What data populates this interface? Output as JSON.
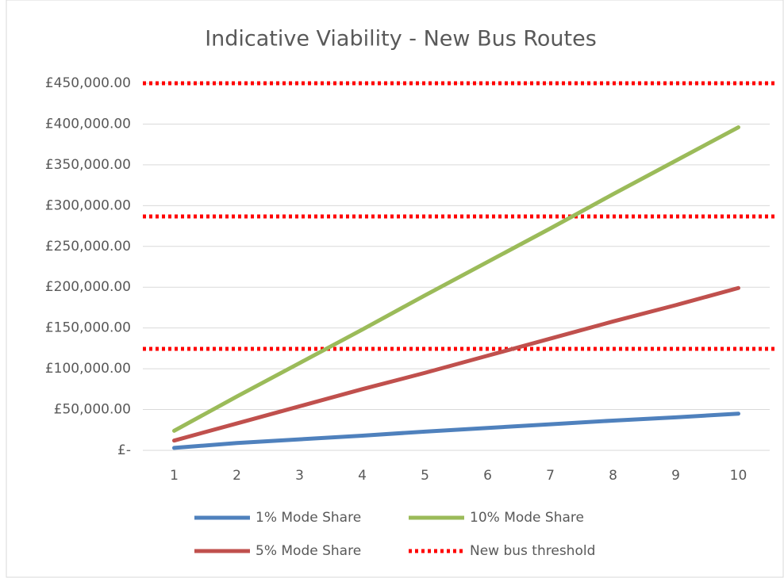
{
  "chart_data": {
    "type": "line",
    "title": "Indicative Viability - New Bus Routes",
    "categories": [
      "1",
      "2",
      "3",
      "4",
      "5",
      "6",
      "7",
      "8",
      "9",
      "10"
    ],
    "series": [
      {
        "name": "1% Mode Share",
        "color": "#4f81bd",
        "values": [
          3000,
          9000,
          13500,
          18000,
          23000,
          27500,
          32000,
          36500,
          40500,
          45000
        ]
      },
      {
        "name": "10% Mode Share",
        "color": "#9bbb59",
        "values": [
          24000,
          66000,
          107000,
          148000,
          190000,
          231000,
          272000,
          314000,
          355000,
          396000
        ]
      },
      {
        "name": "5% Mode Share",
        "color": "#c0504d",
        "values": [
          12000,
          33000,
          54000,
          75000,
          95000,
          116000,
          137000,
          158000,
          178000,
          199000
        ]
      }
    ],
    "threshold": {
      "name": "New bus threshold",
      "color": "#ff0000",
      "values": [
        124400,
        286700,
        450000
      ]
    },
    "ylim": [
      0,
      450000
    ],
    "yticks": [
      {
        "value": 0,
        "label": "£-"
      },
      {
        "value": 50000,
        "label": "£50,000.00"
      },
      {
        "value": 100000,
        "label": "£100,000.00"
      },
      {
        "value": 150000,
        "label": "£150,000.00"
      },
      {
        "value": 200000,
        "label": "£200,000.00"
      },
      {
        "value": 250000,
        "label": "£250,000.00"
      },
      {
        "value": 300000,
        "label": "£300,000.00"
      },
      {
        "value": 350000,
        "label": "£350,000.00"
      },
      {
        "value": 400000,
        "label": "£400,000.00"
      },
      {
        "value": 450000,
        "label": "£450,000.00"
      }
    ],
    "grid": true
  }
}
